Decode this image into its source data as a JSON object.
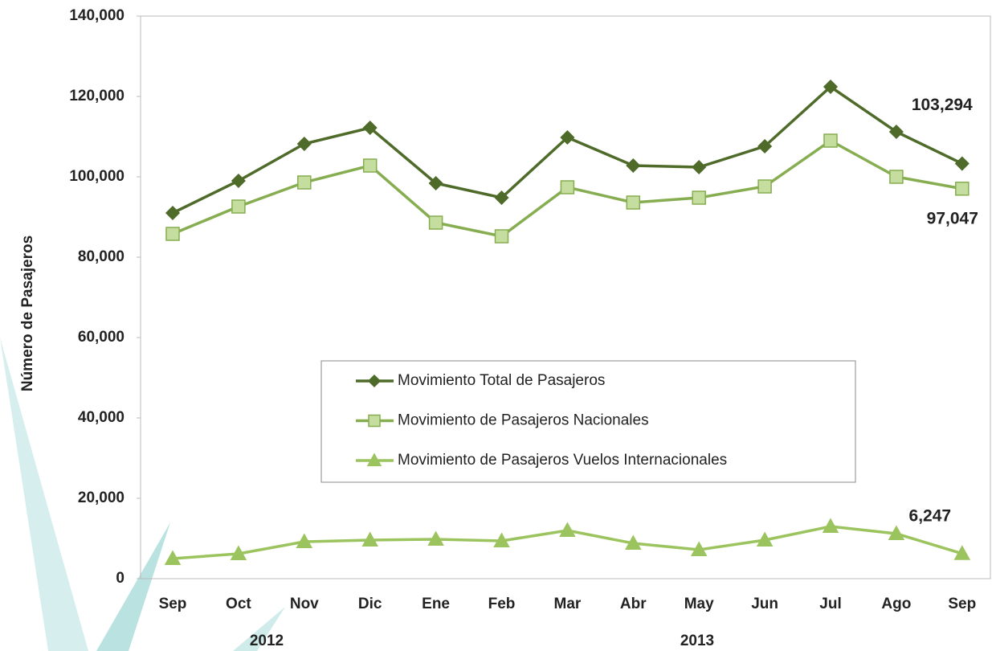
{
  "chart_data": {
    "type": "line",
    "y_label": "Número de Pasajeros",
    "categories": [
      "Sep",
      "Oct",
      "Nov",
      "Dic",
      "Ene",
      "Feb",
      "Mar",
      "Abr",
      "May",
      "Jun",
      "Jul",
      "Ago",
      "Sep"
    ],
    "x_groups": [
      "2012",
      "2013"
    ],
    "series": [
      {
        "name": "Movimiento Total de Pasajeros",
        "color": "#4f6b2a",
        "marker": "diamond",
        "values": [
          91000,
          99000,
          108200,
          112200,
          98400,
          94800,
          109800,
          102800,
          102400,
          107600,
          122400,
          111200,
          103294
        ],
        "value_labels": [
          null,
          null,
          null,
          null,
          null,
          null,
          null,
          null,
          null,
          null,
          null,
          null,
          "103,294"
        ]
      },
      {
        "name": "Movimiento de Pasajeros Nacionales",
        "color": "#86ad50",
        "marker": "square",
        "values": [
          85800,
          92600,
          98600,
          102800,
          88600,
          85200,
          97400,
          93600,
          94800,
          97600,
          109000,
          100000,
          97047
        ],
        "value_labels": [
          null,
          null,
          null,
          null,
          null,
          null,
          null,
          null,
          null,
          null,
          null,
          null,
          "97,047"
        ]
      },
      {
        "name": "Movimiento de Pasajeros Vuelos Internacionales",
        "color": "#9cc45e",
        "marker": "triangle",
        "values": [
          5000,
          6200,
          9200,
          9600,
          9800,
          9400,
          12000,
          8800,
          7200,
          9600,
          13000,
          11200,
          6247
        ],
        "value_labels": [
          null,
          null,
          null,
          null,
          null,
          null,
          null,
          null,
          null,
          null,
          null,
          null,
          "6,247"
        ]
      }
    ],
    "ylim": [
      0,
      140000
    ],
    "yticks": [
      0,
      {
        "value": 20000,
        "label": "20,000"
      },
      {
        "value": 40000,
        "label": "40,000"
      },
      {
        "value": 60000,
        "label": "60,000"
      },
      {
        "value": 80000,
        "label": "80,000"
      },
      {
        "value": 100000,
        "label": "100,000"
      },
      {
        "value": 120000,
        "label": "120,000"
      },
      {
        "value": 140000,
        "label": "140,000"
      }
    ],
    "grid": false
  }
}
